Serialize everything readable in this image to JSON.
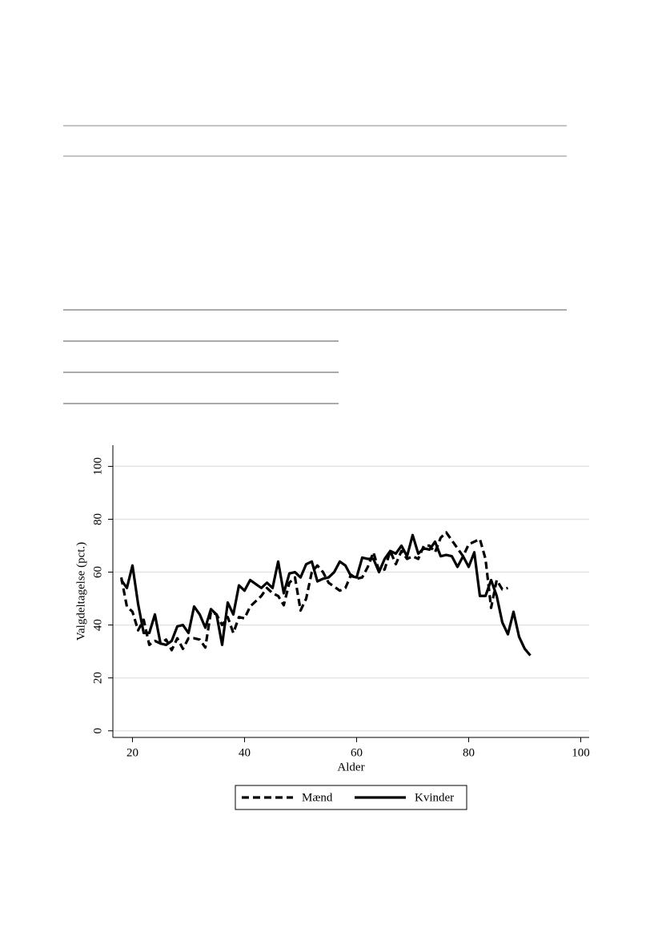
{
  "chart_data": {
    "type": "line",
    "xlabel": "Alder",
    "ylabel": "Valgdeltagelse (pct.)",
    "xlim": [
      16.5,
      101.5
    ],
    "xticks": [
      20,
      40,
      60,
      80,
      100
    ],
    "ylim": [
      -2.5,
      108
    ],
    "yticks": [
      0,
      20,
      40,
      60,
      80,
      100
    ],
    "grid": true,
    "legend": "bottom",
    "series": [
      {
        "name": "Mænd",
        "color": "#000000",
        "style": "dashed",
        "x": [
          18,
          19,
          20,
          21,
          22,
          23,
          24,
          25,
          26,
          27,
          28,
          29,
          30,
          31,
          32,
          33,
          34,
          35,
          36,
          37,
          38,
          39,
          40,
          41,
          42,
          43,
          44,
          45,
          46,
          47,
          48,
          49,
          50,
          51,
          52,
          53,
          54,
          55,
          56,
          57,
          58,
          59,
          60,
          61,
          62,
          63,
          64,
          65,
          66,
          67,
          68,
          69,
          70,
          71,
          72,
          73,
          74,
          75,
          76,
          77,
          78,
          79,
          80,
          81,
          82,
          83,
          84,
          85,
          86,
          87
        ],
        "values": [
          58,
          47,
          45,
          38,
          42,
          32.5,
          34,
          33,
          34.5,
          30.5,
          35,
          31,
          35,
          35,
          34.5,
          31.5,
          45,
          44,
          40,
          43,
          37,
          43,
          42.5,
          47,
          49,
          51,
          54,
          52,
          51,
          47.5,
          56,
          58,
          45.5,
          50,
          60,
          62.5,
          60,
          56,
          54.5,
          53,
          54,
          59,
          57.5,
          58,
          62,
          67.5,
          60.5,
          61,
          68,
          63,
          68,
          65,
          66,
          65,
          70,
          70,
          67.5,
          73,
          75,
          72,
          69,
          66,
          70.5,
          71.5,
          72.5,
          65,
          46.5,
          57,
          53.5,
          54
        ]
      },
      {
        "name": "Kvinder",
        "color": "#000000",
        "style": "solid",
        "x": [
          18,
          19,
          20,
          21,
          22,
          23,
          24,
          25,
          26,
          27,
          28,
          29,
          30,
          31,
          32,
          33,
          34,
          35,
          36,
          37,
          38,
          39,
          40,
          41,
          42,
          43,
          44,
          45,
          46,
          47,
          48,
          49,
          50,
          51,
          52,
          53,
          54,
          55,
          56,
          57,
          58,
          59,
          60,
          61,
          62,
          63,
          64,
          65,
          66,
          67,
          68,
          69,
          70,
          71,
          72,
          73,
          74,
          75,
          76,
          77,
          78,
          79,
          80,
          81,
          82,
          83,
          84,
          85,
          86,
          87,
          88,
          89,
          90,
          91
        ],
        "values": [
          57,
          54,
          62.5,
          48,
          37,
          37,
          44,
          33,
          32.5,
          34,
          39.5,
          40,
          37,
          47,
          44,
          39,
          46,
          44,
          32.5,
          48.5,
          44,
          55,
          53,
          57,
          55.5,
          54,
          56,
          54,
          64,
          52,
          59.5,
          60,
          58,
          63,
          64,
          56.5,
          57.5,
          58,
          60,
          64,
          62.5,
          58.5,
          58,
          65.5,
          65,
          65,
          60,
          65,
          68,
          67,
          70,
          66,
          74,
          67,
          69,
          68.5,
          71.5,
          66,
          66.5,
          66,
          62,
          66,
          62,
          67.5,
          51,
          51,
          57,
          51,
          41,
          36.5,
          45,
          35.5,
          31,
          28.5
        ]
      }
    ]
  }
}
